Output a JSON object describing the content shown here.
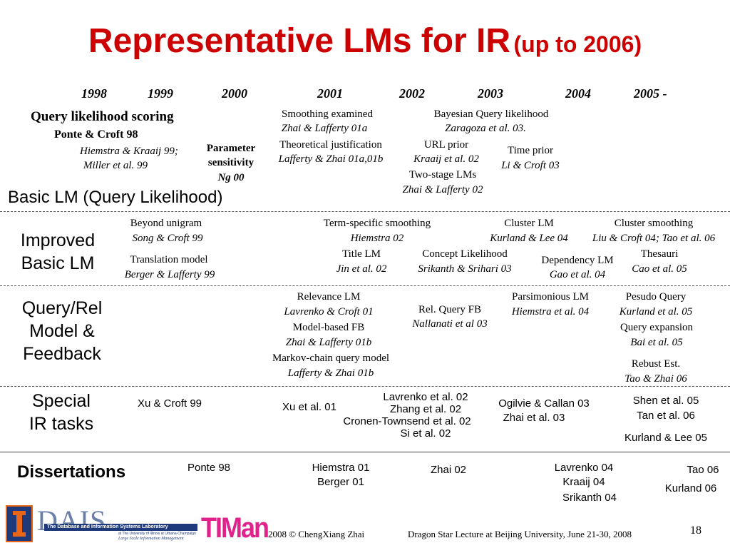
{
  "title": {
    "main": "Representative LMs for IR",
    "sub": "(up to 2006)"
  },
  "years": [
    "1998",
    "1999",
    "2000",
    "2001",
    "2002",
    "2003",
    "2004",
    "2005 -"
  ],
  "basic": {
    "query_likelihood": "Query likelihood scoring",
    "ponte": "Ponte & Croft 98",
    "hiemstra": "Hiemstra & Kraaij 99;",
    "miller": "Miller et al. 99",
    "param1": "Parameter",
    "param2": "sensitivity",
    "param3": "Ng 00",
    "smoothing": "Smoothing examined",
    "smoothing_ref": "Zhai & Lafferty 01a",
    "theoretical": "Theoretical justification",
    "theoretical_ref": "Lafferty & Zhai 01a,01b",
    "bayesian": "Bayesian Query likelihood",
    "bayesian_ref": "Zaragoza et al. 03.",
    "url_prior": "URL  prior",
    "url_prior_ref": "Kraaij et al. 02",
    "time_prior": "Time prior",
    "time_prior_ref": "Li & Croft 03",
    "two_stage": "Two-stage LMs",
    "two_stage_ref": "Zhai & Lafferty 02",
    "label": "Basic LM (Query Likelihood)"
  },
  "improved": {
    "label1": "Improved",
    "label2": "Basic LM",
    "beyond": "Beyond unigram",
    "beyond_ref": "Song & Croft 99",
    "translation": "Translation model",
    "translation_ref": "Berger & Lafferty 99",
    "term_specific": "Term-specific smoothing",
    "term_specific_ref": "Hiemstra 02",
    "title_lm": "Title LM",
    "title_lm_ref": "Jin et al. 02",
    "concept": "Concept Likelihood",
    "concept_ref": "Srikanth & Srihari 03",
    "cluster_lm": "Cluster LM",
    "cluster_lm_ref": "Kurland & Lee 04",
    "dependency": "Dependency LM",
    "dependency_ref": "Gao et al. 04",
    "cluster_smoothing": "Cluster smoothing",
    "cluster_smoothing_ref": "Liu & Croft 04; Tao et al. 06",
    "thesauri": "Thesauri",
    "thesauri_ref": "Cao et al. 05"
  },
  "query_rel": {
    "label1": "Query/Rel",
    "label2": "Model &",
    "label3": "Feedback",
    "relevance": "Relevance LM",
    "relevance_ref": "Lavrenko & Croft 01",
    "model_fb": "Model-based FB",
    "model_fb_ref": "Zhai & Lafferty 01b",
    "markov": "Markov-chain query model",
    "markov_ref": "Lafferty & Zhai 01b",
    "rel_query_fb": "Rel.  Query FB",
    "rel_query_fb_ref": "Nallanati et al 03",
    "parsimonious": "Parsimonious LM",
    "parsimonious_ref": "Hiemstra et al. 04",
    "pseudo": "Pesudo Query",
    "pseudo_ref": "Kurland et al. 05",
    "expansion": "Query expansion",
    "expansion_ref": "Bai et al. 05",
    "robust": "Rebust Est.",
    "robust_ref": "Tao & Zhai 06"
  },
  "special": {
    "label1": "Special",
    "label2": "IR tasks",
    "xu_croft": "Xu & Croft 99",
    "xu_et_al": "Xu et al. 01",
    "lavrenko": "Lavrenko et al. 02",
    "zhang": "Zhang et al. 02",
    "cronen": "Cronen-Townsend et al.  02",
    "si": "Si et al.  02",
    "ogilvie": "Ogilvie & Callan 03",
    "zhai03": "Zhai et al. 03",
    "shen": "Shen et al. 05",
    "tan": "Tan et al. 06",
    "kurland_lee": "Kurland & Lee 05"
  },
  "dissertations": {
    "label": "Dissertations",
    "ponte": "Ponte 98",
    "hiemstra": "Hiemstra 01",
    "berger": "Berger 01",
    "zhai": "Zhai 02",
    "lavrenko": "Lavrenko 04",
    "kraaij": "Kraaij 04",
    "srikanth": "Srikanth 04",
    "tao": "Tao 06",
    "kurland": "Kurland 06"
  },
  "footer": {
    "dais_letters": "DAIS",
    "dais_line1": "The Database and Information Systems Laboratory",
    "dais_line2": "at The University of Illinois at Urbana-Champaign",
    "dais_line3": "Large Scale Information Management",
    "timan": "TIMan",
    "copyright": "2008  © ChengXiang Zhai",
    "lecture": "Dragon Star Lecture at Beijing University, June 21-30, 2008",
    "page": "18"
  },
  "colors": {
    "title": "#cc0000",
    "logo_blue": "#1f3a7a",
    "logo_orange": "#e8661a",
    "timan_pink": "#e0238c"
  }
}
